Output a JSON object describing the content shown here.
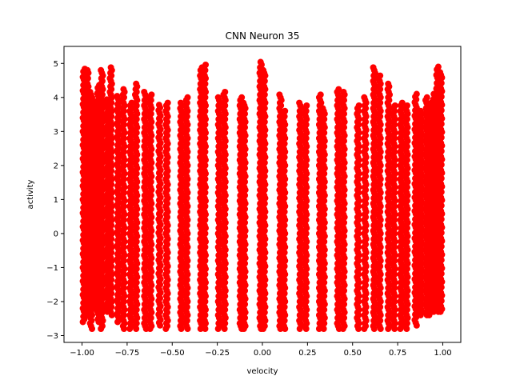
{
  "chart_data": {
    "type": "scatter",
    "title": "CNN Neuron 35",
    "xlabel": "velocity",
    "ylabel": "activity",
    "xlim": [
      -1.1,
      1.1
    ],
    "ylim": [
      -3.2,
      5.5
    ],
    "xticks": [
      -1.0,
      -0.75,
      -0.5,
      -0.25,
      0.0,
      0.25,
      0.5,
      0.75,
      1.0
    ],
    "xtick_labels": [
      "−1.00",
      "−0.75",
      "−0.50",
      "−0.25",
      "0.00",
      "0.25",
      "0.50",
      "0.75",
      "1.00"
    ],
    "yticks": [
      -3,
      -2,
      -1,
      0,
      1,
      2,
      3,
      4,
      5
    ],
    "ytick_labels": [
      "−3",
      "−2",
      "−1",
      "0",
      "1",
      "2",
      "3",
      "4",
      "5"
    ],
    "grid": false,
    "marker_color": "#ff0000",
    "series": [
      {
        "points_by_velocity": [
          {
            "x": -0.99,
            "ymin": -2.6,
            "ymax": 4.9
          },
          {
            "x": -0.97,
            "ymin": -2.4,
            "ymax": 4.8
          },
          {
            "x": -0.95,
            "ymin": -2.8,
            "ymax": 4.2
          },
          {
            "x": -0.93,
            "ymin": -2.2,
            "ymax": 3.9
          },
          {
            "x": -0.91,
            "ymin": -2.6,
            "ymax": 4.4
          },
          {
            "x": -0.89,
            "ymin": -2.8,
            "ymax": 4.8
          },
          {
            "x": -0.86,
            "ymin": -2.3,
            "ymax": 4.0
          },
          {
            "x": -0.84,
            "ymin": -2.4,
            "ymax": 4.9
          },
          {
            "x": -0.8,
            "ymin": -2.6,
            "ymax": 4.1
          },
          {
            "x": -0.77,
            "ymin": -2.8,
            "ymax": 4.3
          },
          {
            "x": -0.73,
            "ymin": -2.8,
            "ymax": 3.9
          },
          {
            "x": -0.7,
            "ymin": -2.8,
            "ymax": 4.4
          },
          {
            "x": -0.65,
            "ymin": -2.8,
            "ymax": 4.2
          },
          {
            "x": -0.62,
            "ymin": -2.8,
            "ymax": 4.1
          },
          {
            "x": -0.57,
            "ymin": -2.7,
            "ymax": 3.8
          },
          {
            "x": -0.53,
            "ymin": -2.8,
            "ymax": 3.9
          },
          {
            "x": -0.45,
            "ymin": -2.8,
            "ymax": 3.9
          },
          {
            "x": -0.42,
            "ymin": -2.8,
            "ymax": 4.0
          },
          {
            "x": -0.34,
            "ymin": -2.8,
            "ymax": 4.9
          },
          {
            "x": -0.32,
            "ymin": -2.8,
            "ymax": 5.0
          },
          {
            "x": -0.24,
            "ymin": -2.8,
            "ymax": 4.0
          },
          {
            "x": -0.21,
            "ymin": -2.8,
            "ymax": 4.2
          },
          {
            "x": -0.12,
            "ymin": -2.8,
            "ymax": 4.0
          },
          {
            "x": -0.1,
            "ymin": -2.8,
            "ymax": 3.9
          },
          {
            "x": -0.01,
            "ymin": -2.8,
            "ymax": 5.1
          },
          {
            "x": 0.01,
            "ymin": -2.8,
            "ymax": 4.8
          },
          {
            "x": 0.1,
            "ymin": -2.8,
            "ymax": 4.1
          },
          {
            "x": 0.12,
            "ymin": -2.8,
            "ymax": 3.6
          },
          {
            "x": 0.21,
            "ymin": -2.8,
            "ymax": 3.9
          },
          {
            "x": 0.24,
            "ymin": -2.8,
            "ymax": 3.8
          },
          {
            "x": 0.32,
            "ymin": -2.8,
            "ymax": 4.1
          },
          {
            "x": 0.34,
            "ymin": -2.8,
            "ymax": 3.7
          },
          {
            "x": 0.42,
            "ymin": -2.8,
            "ymax": 4.3
          },
          {
            "x": 0.45,
            "ymin": -2.8,
            "ymax": 4.2
          },
          {
            "x": 0.53,
            "ymin": -2.8,
            "ymax": 3.8
          },
          {
            "x": 0.57,
            "ymin": -2.8,
            "ymax": 4.0
          },
          {
            "x": 0.62,
            "ymin": -2.8,
            "ymax": 4.9
          },
          {
            "x": 0.65,
            "ymin": -2.8,
            "ymax": 4.7
          },
          {
            "x": 0.7,
            "ymin": -2.8,
            "ymax": 4.4
          },
          {
            "x": 0.73,
            "ymin": -2.8,
            "ymax": 3.8
          },
          {
            "x": 0.77,
            "ymin": -2.8,
            "ymax": 3.9
          },
          {
            "x": 0.8,
            "ymin": -2.8,
            "ymax": 3.8
          },
          {
            "x": 0.85,
            "ymin": -2.7,
            "ymax": 4.1
          },
          {
            "x": 0.88,
            "ymin": -2.4,
            "ymax": 3.6
          },
          {
            "x": 0.91,
            "ymin": -2.4,
            "ymax": 4.0
          },
          {
            "x": 0.93,
            "ymin": -2.4,
            "ymax": 3.9
          },
          {
            "x": 0.95,
            "ymin": -2.3,
            "ymax": 4.1
          },
          {
            "x": 0.97,
            "ymin": -2.3,
            "ymax": 4.9
          },
          {
            "x": 0.99,
            "ymin": -2.3,
            "ymax": 4.8
          }
        ]
      }
    ]
  }
}
